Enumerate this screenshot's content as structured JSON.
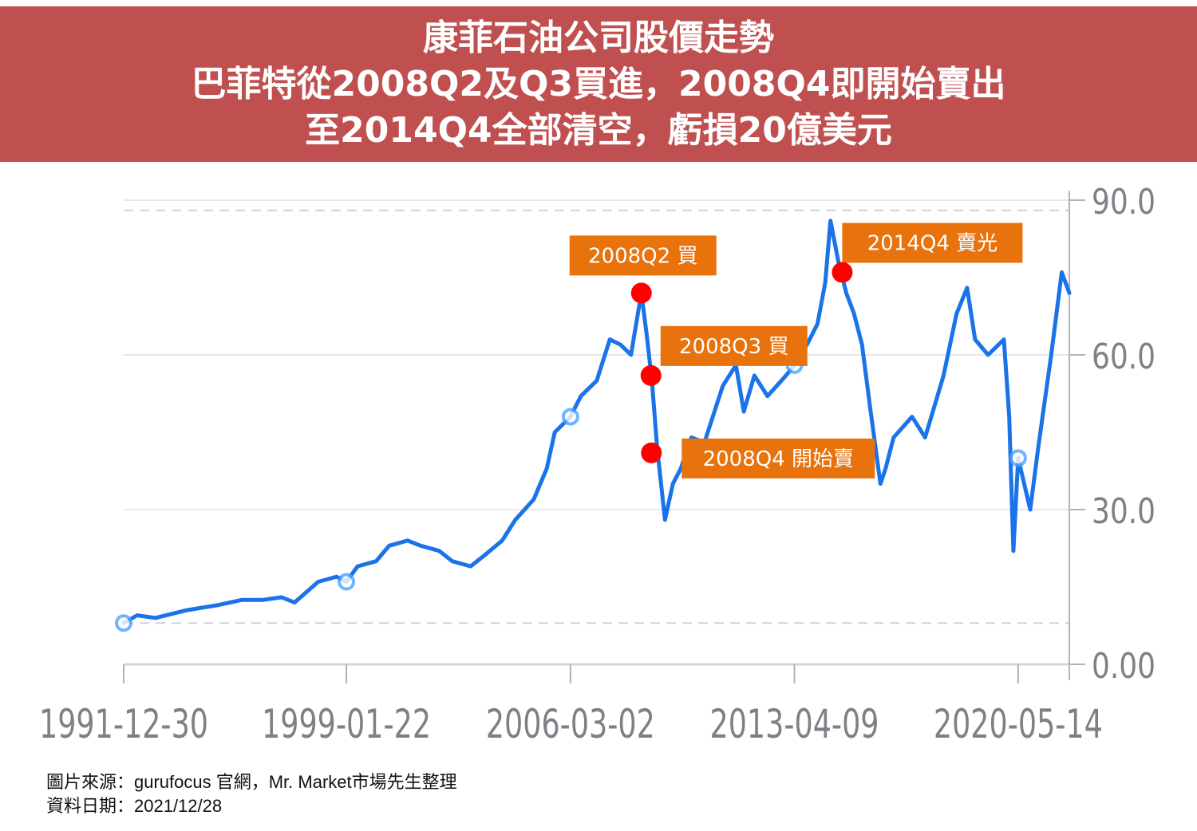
{
  "title": {
    "line1": "康菲石油公司股價走勢",
    "line2": "巴菲特從2008Q2及Q3買進，2008Q4即開始賣出",
    "line3": "至2014Q4全部清空，虧損20億美元"
  },
  "footer": {
    "source": "圖片來源：gurufocus 官網，Mr. Market市場先生整理",
    "date": "資料日期：2021/12/28"
  },
  "colors": {
    "title_band": "#c05050",
    "line": "#1a73e8",
    "marker": "#ff0000",
    "label_box": "#e8720c",
    "grid": "#e5e8ee",
    "axis_text": "#7f7f86"
  },
  "chart_data": {
    "type": "line",
    "x_ticks": [
      "1991-12-30",
      "1999-01-22",
      "2006-03-02",
      "2013-04-09",
      "2020-05-14"
    ],
    "y_ticks": [
      "0.00",
      "30.0",
      "60.0",
      "90.0"
    ],
    "ylim": [
      0,
      90
    ],
    "xlim": [
      "1991-12-30",
      "2021-12-28"
    ],
    "grid": true,
    "series": [
      {
        "values": [
          [
            "1991-12-30",
            8
          ],
          [
            "1992-06-01",
            9.5
          ],
          [
            "1993-01-01",
            9
          ],
          [
            "1994-01-01",
            10.5
          ],
          [
            "1995-01-01",
            11.5
          ],
          [
            "1995-10-01",
            12.5
          ],
          [
            "1996-06-01",
            12.5
          ],
          [
            "1997-01-01",
            13
          ],
          [
            "1997-06-01",
            12
          ],
          [
            "1998-03-01",
            16
          ],
          [
            "1998-10-01",
            17
          ],
          [
            "1999-01-22",
            16
          ],
          [
            "1999-06-01",
            19
          ],
          [
            "2000-01-01",
            20
          ],
          [
            "2000-06-01",
            23
          ],
          [
            "2001-01-01",
            24
          ],
          [
            "2001-06-01",
            23
          ],
          [
            "2002-01-01",
            22
          ],
          [
            "2002-06-01",
            20
          ],
          [
            "2003-01-01",
            19
          ],
          [
            "2003-06-01",
            21
          ],
          [
            "2004-01-01",
            24
          ],
          [
            "2004-06-01",
            28
          ],
          [
            "2005-01-01",
            32
          ],
          [
            "2005-06-01",
            38
          ],
          [
            "2005-09-01",
            45
          ],
          [
            "2006-03-02",
            48
          ],
          [
            "2006-07-01",
            52
          ],
          [
            "2007-01-01",
            55
          ],
          [
            "2007-06-01",
            63
          ],
          [
            "2007-10-01",
            62
          ],
          [
            "2008-02-01",
            60
          ],
          [
            "2008-06-01",
            72
          ],
          [
            "2008-08-01",
            64
          ],
          [
            "2008-10-01",
            55
          ],
          [
            "2008-12-01",
            42
          ],
          [
            "2009-03-01",
            28
          ],
          [
            "2009-06-01",
            35
          ],
          [
            "2009-09-01",
            38
          ],
          [
            "2010-01-01",
            44
          ],
          [
            "2010-06-01",
            43
          ],
          [
            "2011-01-01",
            54
          ],
          [
            "2011-06-01",
            58
          ],
          [
            "2011-09-01",
            49
          ],
          [
            "2012-01-01",
            56
          ],
          [
            "2012-06-01",
            52
          ],
          [
            "2013-01-01",
            56
          ],
          [
            "2013-04-09",
            58
          ],
          [
            "2013-09-01",
            62
          ],
          [
            "2014-01-01",
            66
          ],
          [
            "2014-04-01",
            74
          ],
          [
            "2014-06-01",
            86
          ],
          [
            "2014-09-01",
            78
          ],
          [
            "2014-12-01",
            72
          ],
          [
            "2015-03-01",
            68
          ],
          [
            "2015-06-01",
            62
          ],
          [
            "2015-09-01",
            50
          ],
          [
            "2016-01-01",
            35
          ],
          [
            "2016-03-01",
            38
          ],
          [
            "2016-06-01",
            44
          ],
          [
            "2017-01-01",
            48
          ],
          [
            "2017-06-01",
            44
          ],
          [
            "2018-01-01",
            56
          ],
          [
            "2018-06-01",
            68
          ],
          [
            "2018-10-01",
            73
          ],
          [
            "2019-01-01",
            63
          ],
          [
            "2019-06-01",
            60
          ],
          [
            "2019-12-01",
            63
          ],
          [
            "2020-02-01",
            48
          ],
          [
            "2020-03-20",
            22
          ],
          [
            "2020-05-14",
            40
          ],
          [
            "2020-10-01",
            30
          ],
          [
            "2021-01-01",
            42
          ],
          [
            "2021-06-01",
            60
          ],
          [
            "2021-10-01",
            76
          ],
          [
            "2021-12-28",
            72
          ]
        ]
      }
    ],
    "annotations": [
      {
        "label": "2008Q2 買",
        "x": "2008-06-01",
        "y": 72
      },
      {
        "label": "2008Q3 買",
        "x": "2008-09-20",
        "y": 56
      },
      {
        "label": "2008Q4 開始賣",
        "x": "2008-09-25",
        "y": 41
      },
      {
        "label": "2014Q4 賣光",
        "x": "2014-10-15",
        "y": 76
      }
    ]
  }
}
